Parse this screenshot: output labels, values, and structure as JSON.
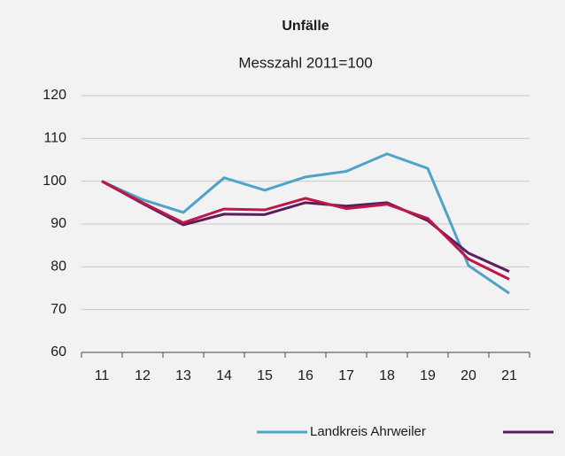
{
  "chart_data": {
    "type": "line",
    "title": "Unfälle",
    "subtitle": "Messzahl 2011=100",
    "categories": [
      "11",
      "12",
      "13",
      "14",
      "15",
      "16",
      "17",
      "18",
      "19",
      "20",
      "21"
    ],
    "series": [
      {
        "name": "Landkreis Ahrweiler",
        "color": "#4fa3c8",
        "values": [
          100,
          95.7,
          92.7,
          100.8,
          97.9,
          101.0,
          102.3,
          106.4,
          103.0,
          80.3,
          73.8
        ]
      },
      {
        "color": "#5a1e5a",
        "values": [
          100,
          94.8,
          89.8,
          92.3,
          92.2,
          95.0,
          94.2,
          95.0,
          90.8,
          83.2,
          78.9
        ]
      },
      {
        "color": "#c0164a",
        "values": [
          100,
          95.0,
          90.3,
          93.5,
          93.3,
          96.0,
          93.6,
          94.6,
          91.3,
          81.8,
          77.1
        ]
      }
    ],
    "ylim": [
      60,
      120
    ],
    "yticks": [
      60,
      70,
      80,
      90,
      100,
      110,
      120
    ],
    "grid": true
  }
}
